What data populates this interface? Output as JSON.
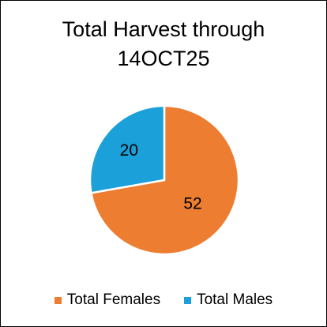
{
  "chart_data": {
    "type": "pie",
    "title_lines": [
      "Total Harvest through",
      "14OCT25"
    ],
    "categories": [
      "Total Females",
      "Total Males"
    ],
    "values": [
      52,
      20
    ],
    "colors": [
      "#ED7D31",
      "#1CA0D9"
    ],
    "data_labels": [
      "52",
      "20"
    ],
    "legend_position": "bottom"
  }
}
